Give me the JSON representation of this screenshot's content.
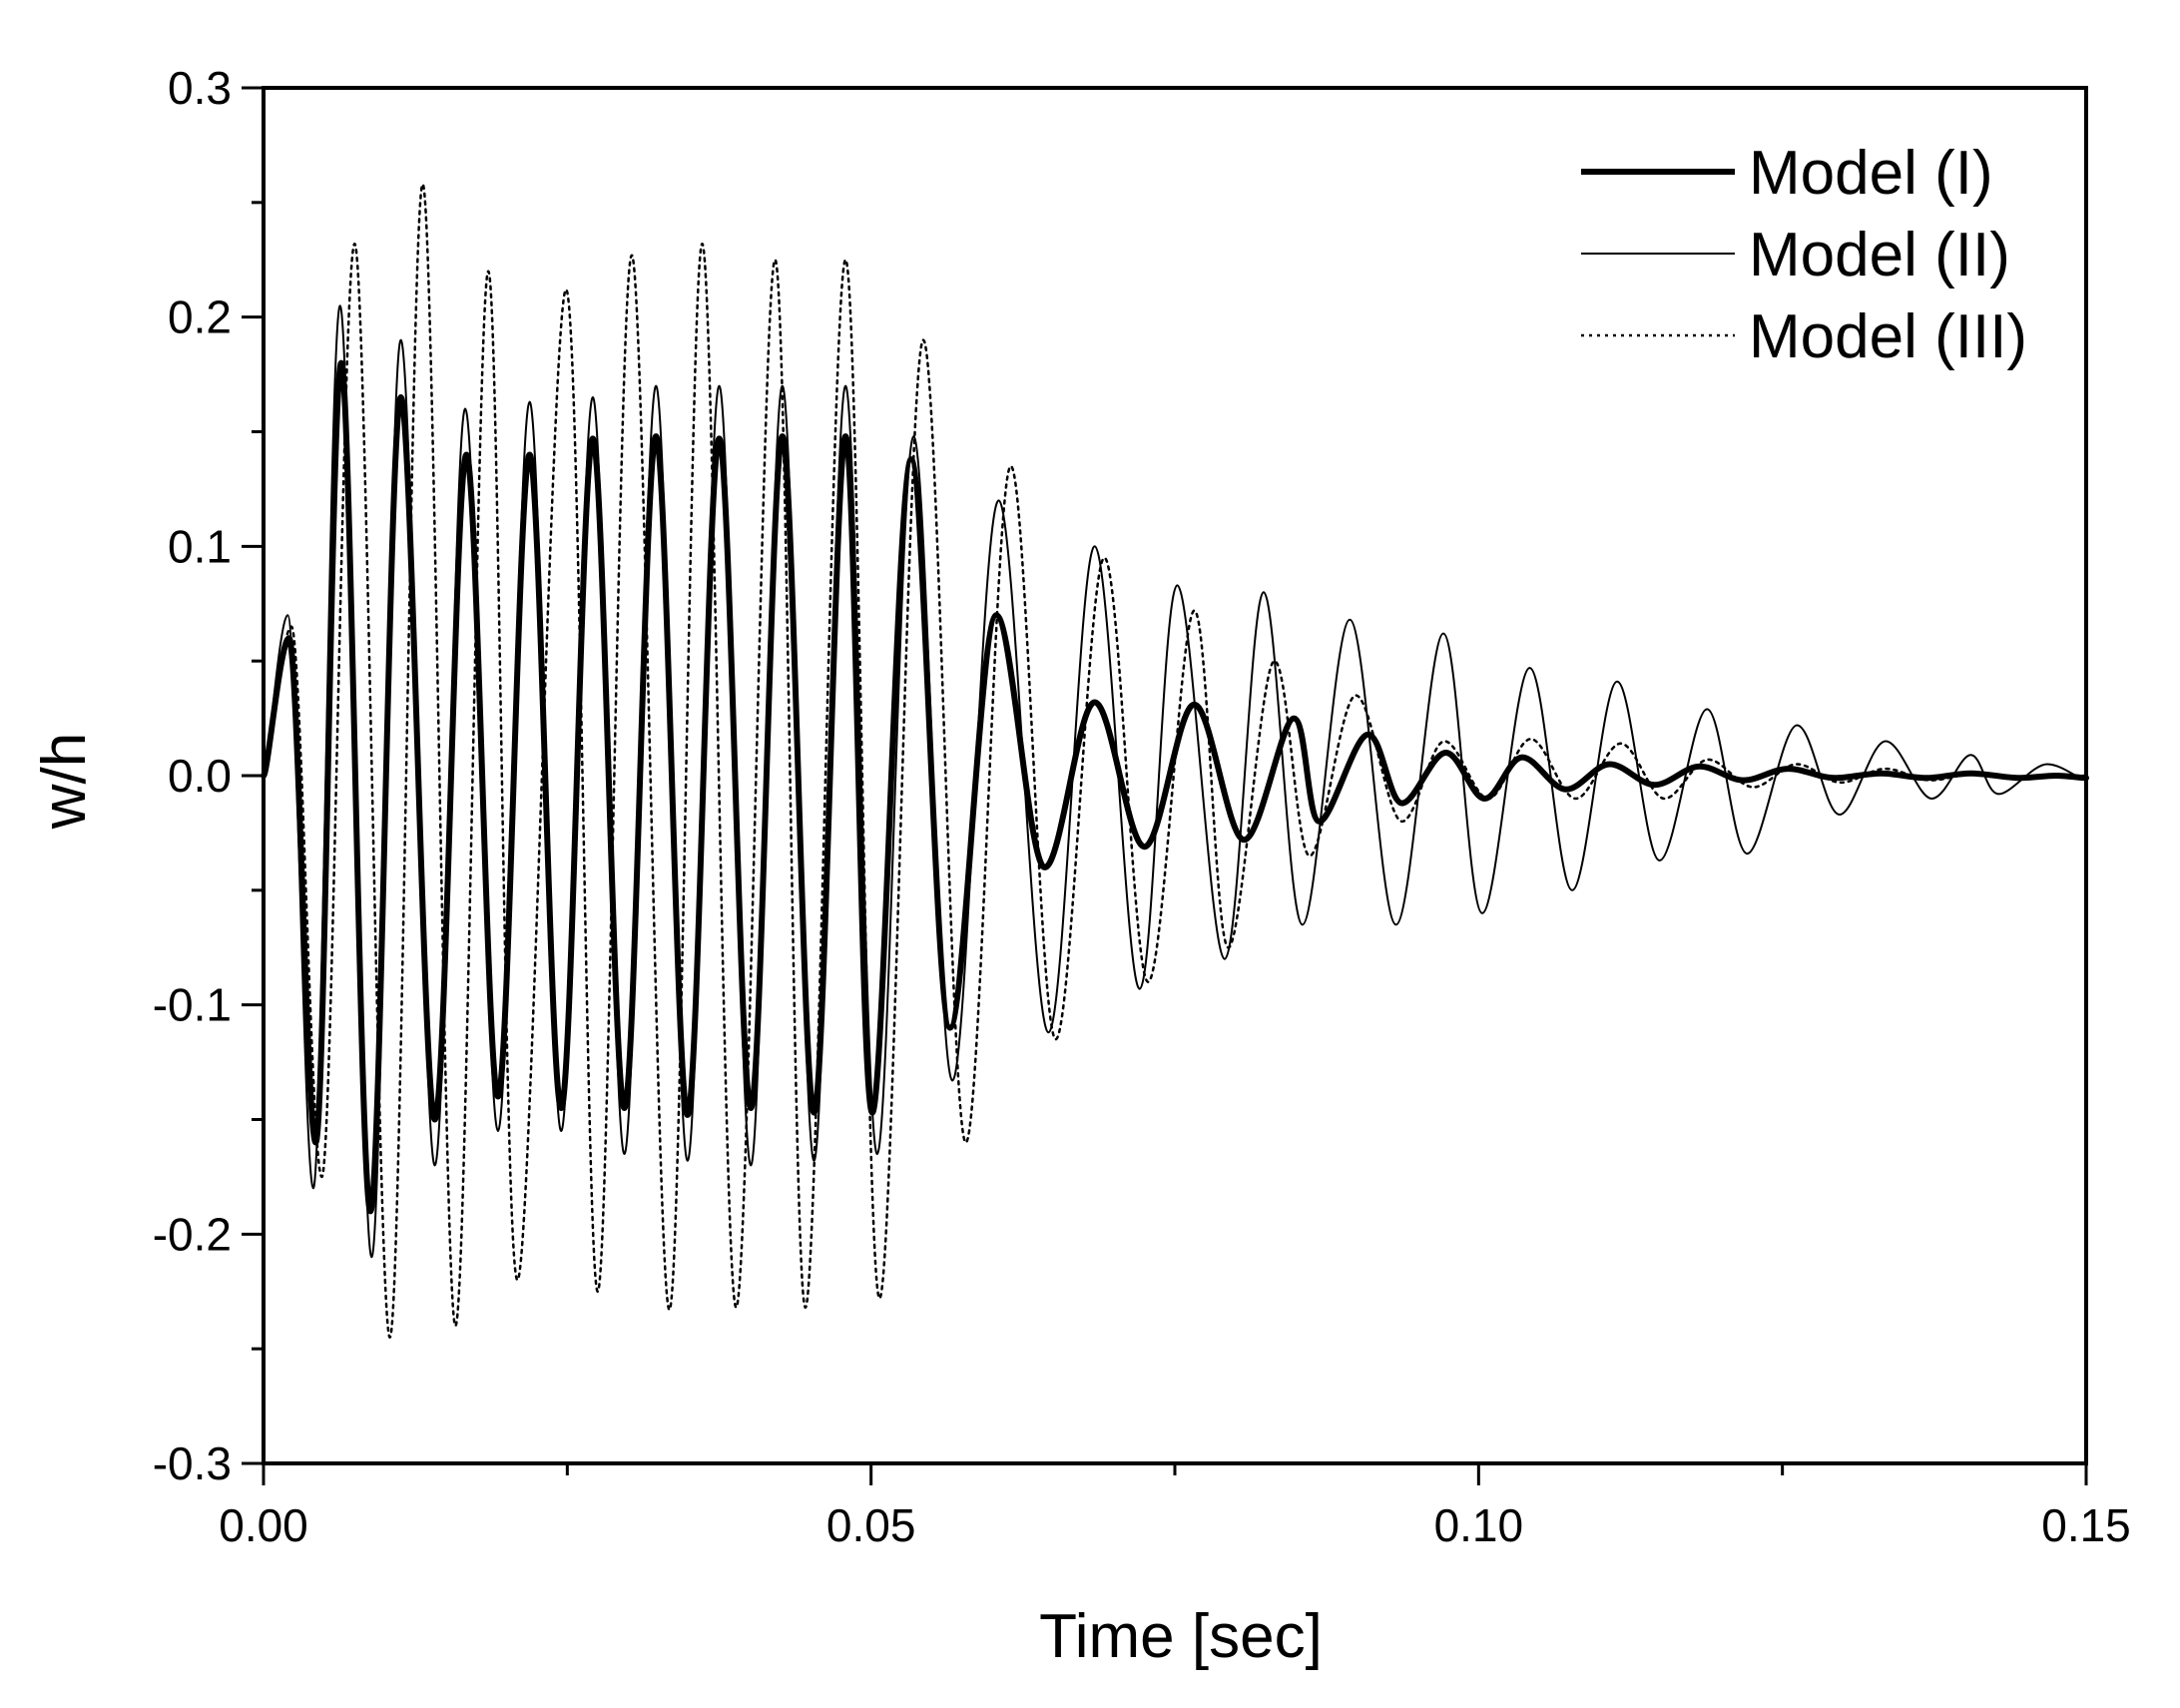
{
  "chart_data": {
    "type": "line",
    "title": "",
    "xlabel": "Time [sec]",
    "ylabel": "w/h",
    "xlim": [
      0.0,
      0.15
    ],
    "ylim": [
      -0.3,
      0.3
    ],
    "x_ticks": [
      0.0,
      0.05,
      0.1,
      0.15
    ],
    "x_tick_labels": [
      "0.00",
      "0.05",
      "0.10",
      "0.15"
    ],
    "x_minor_step": 0.025,
    "y_ticks": [
      -0.3,
      -0.2,
      -0.1,
      0.0,
      0.1,
      0.2,
      0.3
    ],
    "y_tick_labels": [
      "-0.3",
      "-0.2",
      "-0.1",
      "0.0",
      "0.1",
      "0.2",
      "0.3"
    ],
    "y_minor_step": 0.05,
    "grid": false,
    "legend_position": "top-right",
    "colors": {
      "line": "#000000",
      "background": "#ffffff"
    },
    "series": [
      {
        "name": "Model (I)",
        "style": "thick-solid",
        "points": [
          [
            0.0,
            0.0
          ],
          [
            0.0021,
            0.06
          ],
          [
            0.0043,
            -0.16
          ],
          [
            0.0064,
            0.18
          ],
          [
            0.0088,
            -0.19
          ],
          [
            0.0113,
            0.165
          ],
          [
            0.0141,
            -0.15
          ],
          [
            0.0167,
            0.14
          ],
          [
            0.0193,
            -0.14
          ],
          [
            0.0219,
            0.14
          ],
          [
            0.0245,
            -0.145
          ],
          [
            0.0271,
            0.147
          ],
          [
            0.0297,
            -0.145
          ],
          [
            0.0323,
            0.148
          ],
          [
            0.0349,
            -0.148
          ],
          [
            0.0375,
            0.147
          ],
          [
            0.0401,
            -0.145
          ],
          [
            0.0427,
            0.148
          ],
          [
            0.0453,
            -0.147
          ],
          [
            0.0479,
            0.148
          ],
          [
            0.0501,
            -0.147
          ],
          [
            0.0533,
            0.138
          ],
          [
            0.0565,
            -0.11
          ],
          [
            0.0603,
            0.07
          ],
          [
            0.0643,
            -0.04
          ],
          [
            0.0684,
            0.032
          ],
          [
            0.0725,
            -0.031
          ],
          [
            0.0766,
            0.031
          ],
          [
            0.0807,
            -0.028
          ],
          [
            0.0848,
            0.025
          ],
          [
            0.0869,
            -0.02
          ],
          [
            0.0909,
            0.018
          ],
          [
            0.0937,
            -0.012
          ],
          [
            0.0973,
            0.01
          ],
          [
            0.1005,
            -0.01
          ],
          [
            0.1036,
            0.008
          ],
          [
            0.1072,
            -0.006
          ],
          [
            0.1108,
            0.005
          ],
          [
            0.1145,
            -0.004
          ],
          [
            0.1182,
            0.004
          ],
          [
            0.1218,
            -0.002
          ],
          [
            0.1255,
            0.003
          ],
          [
            0.1293,
            -0.001
          ],
          [
            0.1331,
            0.001
          ],
          [
            0.1368,
            -0.001
          ],
          [
            0.1405,
            0.001
          ],
          [
            0.1445,
            -0.001
          ],
          [
            0.1475,
            0.0
          ],
          [
            0.15,
            -0.001
          ]
        ]
      },
      {
        "name": "Model (II)",
        "style": "thin-solid",
        "points": [
          [
            0.0,
            0.0
          ],
          [
            0.002,
            0.07
          ],
          [
            0.0041,
            -0.18
          ],
          [
            0.0063,
            0.205
          ],
          [
            0.0089,
            -0.21
          ],
          [
            0.0113,
            0.19
          ],
          [
            0.0141,
            -0.17
          ],
          [
            0.0166,
            0.16
          ],
          [
            0.0193,
            -0.155
          ],
          [
            0.0219,
            0.163
          ],
          [
            0.0245,
            -0.155
          ],
          [
            0.0271,
            0.165
          ],
          [
            0.0297,
            -0.165
          ],
          [
            0.0323,
            0.17
          ],
          [
            0.0349,
            -0.168
          ],
          [
            0.0375,
            0.17
          ],
          [
            0.0401,
            -0.17
          ],
          [
            0.0427,
            0.17
          ],
          [
            0.0453,
            -0.168
          ],
          [
            0.0479,
            0.17
          ],
          [
            0.0505,
            -0.165
          ],
          [
            0.0535,
            0.148
          ],
          [
            0.0567,
            -0.133
          ],
          [
            0.0605,
            0.12
          ],
          [
            0.0646,
            -0.112
          ],
          [
            0.0684,
            0.1
          ],
          [
            0.0721,
            -0.093
          ],
          [
            0.0752,
            0.083
          ],
          [
            0.0791,
            -0.08
          ],
          [
            0.0823,
            0.08
          ],
          [
            0.0855,
            -0.065
          ],
          [
            0.0894,
            0.068
          ],
          [
            0.0932,
            -0.065
          ],
          [
            0.0971,
            0.062
          ],
          [
            0.1003,
            -0.06
          ],
          [
            0.1042,
            0.047
          ],
          [
            0.1077,
            -0.05
          ],
          [
            0.1114,
            0.041
          ],
          [
            0.1149,
            -0.037
          ],
          [
            0.1188,
            0.029
          ],
          [
            0.1221,
            -0.034
          ],
          [
            0.1262,
            0.022
          ],
          [
            0.1297,
            -0.017
          ],
          [
            0.1335,
            0.015
          ],
          [
            0.1373,
            -0.01
          ],
          [
            0.1405,
            0.009
          ],
          [
            0.1428,
            -0.008
          ],
          [
            0.1468,
            0.005
          ],
          [
            0.15,
            -0.002
          ]
        ]
      },
      {
        "name": "Model (III)",
        "style": "dotted",
        "points": [
          [
            0.0,
            0.0
          ],
          [
            0.0023,
            0.065
          ],
          [
            0.0048,
            -0.175
          ],
          [
            0.0075,
            0.232
          ],
          [
            0.0104,
            -0.245
          ],
          [
            0.0131,
            0.258
          ],
          [
            0.0158,
            -0.24
          ],
          [
            0.0185,
            0.22
          ],
          [
            0.0209,
            -0.22
          ],
          [
            0.0249,
            0.212
          ],
          [
            0.0275,
            -0.225
          ],
          [
            0.0303,
            0.227
          ],
          [
            0.0334,
            -0.233
          ],
          [
            0.0361,
            0.232
          ],
          [
            0.0389,
            -0.232
          ],
          [
            0.0421,
            0.225
          ],
          [
            0.0446,
            -0.232
          ],
          [
            0.0479,
            0.225
          ],
          [
            0.0507,
            -0.228
          ],
          [
            0.0543,
            0.19
          ],
          [
            0.0578,
            -0.16
          ],
          [
            0.0615,
            0.135
          ],
          [
            0.0652,
            -0.115
          ],
          [
            0.0692,
            0.095
          ],
          [
            0.0728,
            -0.09
          ],
          [
            0.0766,
            0.072
          ],
          [
            0.0794,
            -0.075
          ],
          [
            0.0832,
            0.05
          ],
          [
            0.0861,
            -0.035
          ],
          [
            0.0899,
            0.035
          ],
          [
            0.0937,
            -0.02
          ],
          [
            0.0972,
            0.015
          ],
          [
            0.1008,
            -0.01
          ],
          [
            0.1043,
            0.016
          ],
          [
            0.108,
            -0.01
          ],
          [
            0.1117,
            0.014
          ],
          [
            0.1153,
            -0.01
          ],
          [
            0.1189,
            0.007
          ],
          [
            0.1226,
            -0.005
          ],
          [
            0.1262,
            0.005
          ],
          [
            0.1298,
            -0.003
          ],
          [
            0.1335,
            0.003
          ],
          [
            0.1372,
            -0.002
          ],
          [
            0.141,
            0.001
          ],
          [
            0.1447,
            -0.001
          ],
          [
            0.15,
            0.0
          ]
        ]
      }
    ]
  }
}
